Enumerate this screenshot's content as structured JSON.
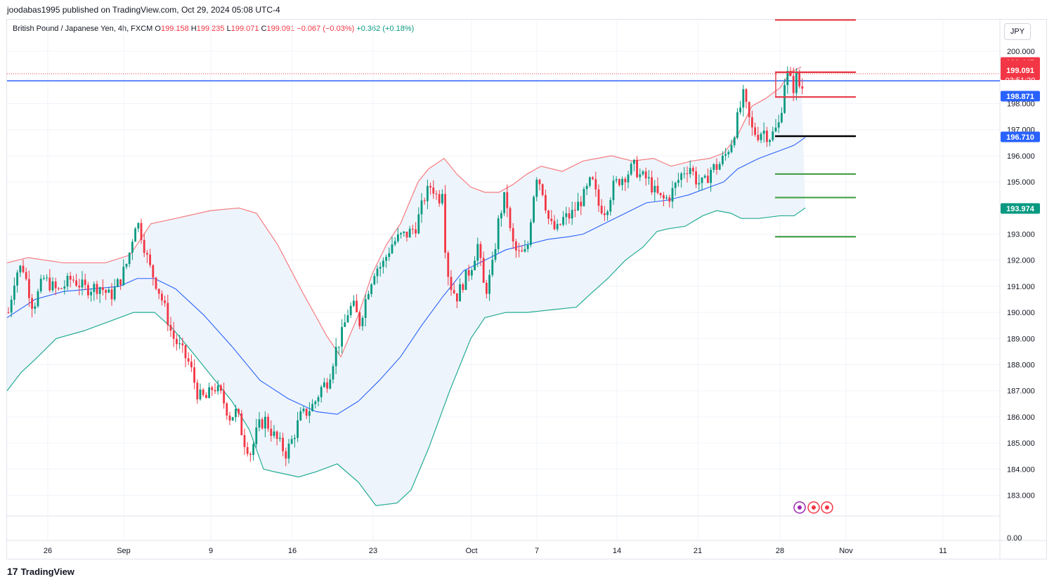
{
  "header": {
    "published": "joodabas1995 published on TradingView.com, Oct 29, 2024 05:08 UTC-4"
  },
  "legend": {
    "symbol": "British Pound / Japanese Yen, 4h, FXCM",
    "open_label": "O",
    "open": "199.158",
    "high_label": "H",
    "high": "199.235",
    "low_label": "L",
    "low": "199.071",
    "close_label": "C",
    "close": "199.091",
    "change": "−0.067 (−0.03%)",
    "change2": "+0.362 (+0.18%)"
  },
  "currency_button": "JPY",
  "footer": {
    "brand": "TradingView",
    "logo_mark": "17"
  },
  "colors": {
    "up": "#089981",
    "down": "#f23645",
    "bb_upper": "#f77c80",
    "bb_lower": "#22ab94",
    "basis": "#2962ff",
    "band_fill": "#eef4fb",
    "level_red": "#e53945",
    "level_green": "#43a047",
    "level_black": "#000000",
    "hline_blue": "#2962ff"
  },
  "chart_data": {
    "type": "candlestick",
    "symbol": "British Pound / Japanese Yen",
    "interval": "4h",
    "ylim": [
      182.4,
      200.6
    ],
    "y_ticks": [
      "200.000",
      "198.000",
      "197.000",
      "196.000",
      "195.000",
      "193.000",
      "192.000",
      "191.000",
      "190.000",
      "189.000",
      "188.000",
      "187.000",
      "186.000",
      "185.000",
      "184.000",
      "183.000"
    ],
    "y_zero_label": "0.00",
    "x_ticks": [
      "26",
      "Sep",
      "9",
      "16",
      "23",
      "Oct",
      "7",
      "14",
      "21",
      "28",
      "Nov",
      "11"
    ],
    "price_tags": [
      {
        "value": "199.447",
        "kind": "high",
        "color": "#f23645"
      },
      {
        "value": "199.091",
        "kind": "last",
        "color": "#f23645",
        "countdown": "03:51:20"
      },
      {
        "value": "198.871",
        "kind": "line",
        "color": "#2962ff"
      },
      {
        "value": "196.710",
        "kind": "basis",
        "color": "#2962ff"
      },
      {
        "value": "193.974",
        "kind": "lower",
        "color": "#089981"
      }
    ],
    "horizontal_line": 198.87,
    "levels": [
      {
        "price": 201.2,
        "color": "red"
      },
      {
        "price": 199.2,
        "color": "red"
      },
      {
        "price": 198.25,
        "color": "red"
      },
      {
        "price": 196.75,
        "color": "black"
      },
      {
        "price": 195.3,
        "color": "green"
      },
      {
        "price": 194.4,
        "color": "green"
      },
      {
        "price": 192.9,
        "color": "green"
      }
    ],
    "close_path": [
      [
        0,
        190.0
      ],
      [
        10,
        191.5
      ],
      [
        20,
        191.8
      ],
      [
        35,
        190.2
      ],
      [
        50,
        191.3
      ],
      [
        70,
        190.8
      ],
      [
        90,
        191.3
      ],
      [
        110,
        190.9
      ],
      [
        130,
        191.0
      ],
      [
        145,
        190.6
      ],
      [
        160,
        191.3
      ],
      [
        170,
        192.0
      ],
      [
        182,
        193.6
      ],
      [
        190,
        192.9
      ],
      [
        200,
        191.8
      ],
      [
        212,
        191.0
      ],
      [
        222,
        190.2
      ],
      [
        233,
        189.1
      ],
      [
        245,
        188.6
      ],
      [
        258,
        188.0
      ],
      [
        270,
        186.8
      ],
      [
        282,
        186.7
      ],
      [
        292,
        187.2
      ],
      [
        303,
        186.8
      ],
      [
        315,
        186.0
      ],
      [
        325,
        186.2
      ],
      [
        335,
        185.1
      ],
      [
        345,
        184.6
      ],
      [
        355,
        185.6
      ],
      [
        365,
        185.9
      ],
      [
        375,
        185.4
      ],
      [
        385,
        185.0
      ],
      [
        395,
        184.6
      ],
      [
        405,
        185.2
      ],
      [
        415,
        186.0
      ],
      [
        425,
        186.2
      ],
      [
        435,
        186.5
      ],
      [
        445,
        187.1
      ],
      [
        455,
        187.4
      ],
      [
        465,
        188.5
      ],
      [
        475,
        189.2
      ],
      [
        483,
        190.0
      ],
      [
        490,
        190.3
      ],
      [
        500,
        189.6
      ],
      [
        512,
        190.9
      ],
      [
        522,
        191.7
      ],
      [
        532,
        191.8
      ],
      [
        545,
        192.6
      ],
      [
        557,
        192.9
      ],
      [
        568,
        193.0
      ],
      [
        580,
        193.3
      ],
      [
        592,
        194.4
      ],
      [
        602,
        194.9
      ],
      [
        612,
        194.3
      ],
      [
        619,
        194.9
      ],
      [
        622,
        192.2
      ],
      [
        628,
        191.1
      ],
      [
        638,
        190.6
      ],
      [
        648,
        191.2
      ],
      [
        658,
        191.7
      ],
      [
        668,
        192.6
      ],
      [
        678,
        190.7
      ],
      [
        688,
        191.6
      ],
      [
        698,
        193.6
      ],
      [
        708,
        194.6
      ],
      [
        713,
        193.2
      ],
      [
        720,
        192.4
      ],
      [
        728,
        192.2
      ],
      [
        738,
        192.3
      ],
      [
        746,
        194.3
      ],
      [
        752,
        195.3
      ],
      [
        760,
        194.7
      ],
      [
        770,
        193.4
      ],
      [
        780,
        193.1
      ],
      [
        790,
        193.6
      ],
      [
        800,
        193.7
      ],
      [
        810,
        194.1
      ],
      [
        820,
        194.5
      ],
      [
        830,
        195.1
      ],
      [
        840,
        194.1
      ],
      [
        850,
        193.9
      ],
      [
        860,
        194.8
      ],
      [
        870,
        195.1
      ],
      [
        880,
        195.3
      ],
      [
        890,
        195.6
      ],
      [
        900,
        195.2
      ],
      [
        910,
        195.1
      ],
      [
        920,
        194.6
      ],
      [
        930,
        194.3
      ],
      [
        940,
        194.4
      ],
      [
        950,
        194.9
      ],
      [
        960,
        195.4
      ],
      [
        970,
        195.6
      ],
      [
        980,
        195.0
      ],
      [
        990,
        194.9
      ],
      [
        1000,
        195.5
      ],
      [
        1010,
        195.6
      ],
      [
        1020,
        196.0
      ],
      [
        1030,
        196.6
      ],
      [
        1040,
        197.7
      ],
      [
        1046,
        198.3
      ],
      [
        1052,
        197.6
      ],
      [
        1058,
        197.0
      ],
      [
        1066,
        196.8
      ],
      [
        1074,
        197.0
      ],
      [
        1082,
        196.7
      ],
      [
        1090,
        196.9
      ],
      [
        1098,
        197.3
      ],
      [
        1104,
        198.8
      ],
      [
        1110,
        199.2
      ],
      [
        1116,
        198.5
      ],
      [
        1122,
        199.1
      ],
      [
        1128,
        198.4
      ],
      [
        1134,
        199.1
      ]
    ],
    "bb_upper_path": [
      [
        0,
        191.9
      ],
      [
        30,
        192.1
      ],
      [
        80,
        191.9
      ],
      [
        140,
        191.9
      ],
      [
        175,
        192.2
      ],
      [
        205,
        193.4
      ],
      [
        240,
        193.6
      ],
      [
        290,
        193.9
      ],
      [
        330,
        194.0
      ],
      [
        355,
        193.8
      ],
      [
        385,
        192.6
      ],
      [
        420,
        190.8
      ],
      [
        455,
        189.1
      ],
      [
        475,
        188.3
      ],
      [
        500,
        189.9
      ],
      [
        520,
        191.5
      ],
      [
        540,
        192.6
      ],
      [
        560,
        193.4
      ],
      [
        585,
        195.0
      ],
      [
        600,
        195.5
      ],
      [
        622,
        195.9
      ],
      [
        640,
        195.3
      ],
      [
        660,
        194.8
      ],
      [
        680,
        194.6
      ],
      [
        700,
        194.6
      ],
      [
        720,
        194.9
      ],
      [
        740,
        195.3
      ],
      [
        760,
        195.6
      ],
      [
        790,
        195.4
      ],
      [
        820,
        195.8
      ],
      [
        840,
        195.9
      ],
      [
        860,
        196.0
      ],
      [
        890,
        195.8
      ],
      [
        920,
        195.9
      ],
      [
        945,
        195.6
      ],
      [
        975,
        195.8
      ],
      [
        1000,
        195.9
      ],
      [
        1020,
        196.1
      ],
      [
        1040,
        196.8
      ],
      [
        1060,
        197.9
      ],
      [
        1080,
        198.2
      ],
      [
        1100,
        198.6
      ],
      [
        1115,
        199.2
      ],
      [
        1130,
        199.4
      ]
    ],
    "bb_lower_path": [
      [
        0,
        187.0
      ],
      [
        20,
        187.7
      ],
      [
        40,
        188.2
      ],
      [
        70,
        189.0
      ],
      [
        110,
        189.3
      ],
      [
        150,
        189.7
      ],
      [
        180,
        190.0
      ],
      [
        210,
        190.0
      ],
      [
        235,
        189.4
      ],
      [
        260,
        188.6
      ],
      [
        290,
        187.6
      ],
      [
        320,
        186.6
      ],
      [
        345,
        185.5
      ],
      [
        365,
        184.0
      ],
      [
        380,
        183.9
      ],
      [
        415,
        183.7
      ],
      [
        440,
        183.9
      ],
      [
        470,
        184.2
      ],
      [
        500,
        183.5
      ],
      [
        525,
        182.6
      ],
      [
        555,
        182.7
      ],
      [
        575,
        183.2
      ],
      [
        600,
        184.8
      ],
      [
        630,
        187.0
      ],
      [
        660,
        189.0
      ],
      [
        680,
        189.8
      ],
      [
        710,
        190.0
      ],
      [
        740,
        190.0
      ],
      [
        775,
        190.1
      ],
      [
        810,
        190.2
      ],
      [
        830,
        190.7
      ],
      [
        855,
        191.3
      ],
      [
        880,
        192.0
      ],
      [
        905,
        192.5
      ],
      [
        925,
        193.1
      ],
      [
        940,
        193.2
      ],
      [
        965,
        193.3
      ],
      [
        990,
        193.7
      ],
      [
        1010,
        193.9
      ],
      [
        1030,
        193.8
      ],
      [
        1045,
        193.6
      ],
      [
        1070,
        193.6
      ],
      [
        1100,
        193.7
      ],
      [
        1120,
        193.7
      ],
      [
        1136,
        194.0
      ]
    ],
    "basis_path": [
      [
        0,
        189.8
      ],
      [
        40,
        190.5
      ],
      [
        80,
        190.8
      ],
      [
        120,
        190.9
      ],
      [
        160,
        191.0
      ],
      [
        185,
        191.3
      ],
      [
        210,
        191.3
      ],
      [
        240,
        190.9
      ],
      [
        280,
        189.9
      ],
      [
        320,
        188.7
      ],
      [
        360,
        187.4
      ],
      [
        400,
        186.7
      ],
      [
        440,
        186.2
      ],
      [
        470,
        186.1
      ],
      [
        500,
        186.6
      ],
      [
        530,
        187.4
      ],
      [
        560,
        188.3
      ],
      [
        590,
        189.5
      ],
      [
        620,
        190.6
      ],
      [
        650,
        191.6
      ],
      [
        680,
        192.0
      ],
      [
        710,
        192.4
      ],
      [
        740,
        192.6
      ],
      [
        770,
        192.8
      ],
      [
        800,
        192.9
      ],
      [
        820,
        193.0
      ],
      [
        850,
        193.4
      ],
      [
        880,
        193.8
      ],
      [
        910,
        194.2
      ],
      [
        940,
        194.3
      ],
      [
        970,
        194.5
      ],
      [
        1000,
        194.8
      ],
      [
        1020,
        195.0
      ],
      [
        1040,
        195.5
      ],
      [
        1070,
        195.9
      ],
      [
        1100,
        196.2
      ],
      [
        1120,
        196.4
      ],
      [
        1136,
        196.7
      ]
    ]
  }
}
